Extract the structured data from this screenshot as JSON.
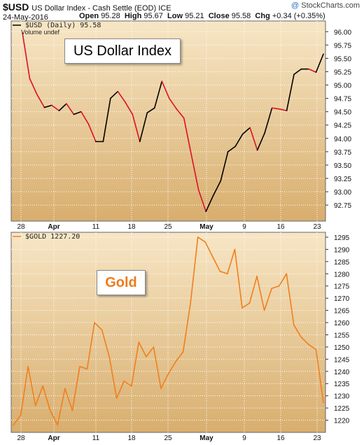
{
  "header": {
    "symbol": "$USD",
    "description": "US Dollar Index - Cash Settle (EOD) ICE",
    "date": "24-May-2016",
    "open_label": "Open",
    "open": "95.28",
    "high_label": "High",
    "high": "95.67",
    "low_label": "Low",
    "low": "95.21",
    "close_label": "Close",
    "close": "95.58",
    "chg_label": "Chg",
    "chg": "+0.34 (+0.35%)",
    "credit_mark": "@",
    "credit": "StockCharts.com"
  },
  "usd_panel": {
    "legend": "$USD (Daily) 95.58",
    "legend2": "Volume undef",
    "title_box": "US Dollar Index"
  },
  "gold_panel": {
    "legend": "$GOLD 1227.20",
    "title_box": "Gold"
  },
  "colors": {
    "background_top": "#f7e6c5",
    "background_bottom": "#d8ae6e",
    "usd_up": "#000000",
    "usd_down": "#dd1122",
    "gold_line": "#f07f1e",
    "grid": "#ffffff"
  },
  "chart_data": [
    {
      "type": "line",
      "series": [
        {
          "name": "$USD (Daily)",
          "values": [
            95.98,
            95.12,
            94.82,
            94.58,
            94.62,
            94.52,
            94.65,
            94.45,
            94.5,
            94.27,
            93.94,
            93.94,
            94.75,
            94.88,
            94.68,
            94.45,
            93.94,
            94.48,
            94.57,
            95.07,
            94.75,
            94.55,
            94.38,
            93.7,
            93.03,
            92.63,
            92.93,
            93.2,
            93.75,
            93.85,
            94.08,
            94.2,
            93.78,
            94.1,
            94.57,
            94.55,
            94.52,
            95.2,
            95.3,
            95.3,
            95.24,
            95.58
          ]
        }
      ],
      "x_labels": [
        "28",
        "Apr",
        "11",
        "18",
        "25",
        "May",
        "9",
        "16",
        "23"
      ],
      "ylim": [
        92.45,
        96.2
      ],
      "y_ticks": [
        "92.75",
        "93.00",
        "93.25",
        "93.50",
        "93.75",
        "94.00",
        "94.25",
        "94.50",
        "94.75",
        "95.00",
        "95.25",
        "95.50",
        "95.75",
        "96.00"
      ],
      "grid": true
    },
    {
      "type": "line",
      "series": [
        {
          "name": "$GOLD",
          "values": [
            1218,
            1222,
            1242,
            1226,
            1234,
            1224,
            1218,
            1233,
            1224,
            1242,
            1241,
            1260,
            1257,
            1246,
            1229,
            1236,
            1234,
            1252,
            1246,
            1250,
            1233,
            1239,
            1244,
            1248,
            1268,
            1295,
            1293,
            1287,
            1281,
            1280,
            1290,
            1266,
            1268,
            1279,
            1265,
            1274,
            1275,
            1280,
            1259,
            1254,
            1251,
            1249,
            1227.2
          ]
        }
      ],
      "x_labels": [
        "28",
        "Apr",
        "11",
        "18",
        "25",
        "May",
        "9",
        "16",
        "23"
      ],
      "ylim": [
        1215,
        1297
      ],
      "y_ticks": [
        "1220",
        "1225",
        "1230",
        "1235",
        "1240",
        "1245",
        "1250",
        "1255",
        "1260",
        "1265",
        "1270",
        "1275",
        "1280",
        "1285",
        "1290",
        "1295"
      ],
      "grid": true
    }
  ]
}
